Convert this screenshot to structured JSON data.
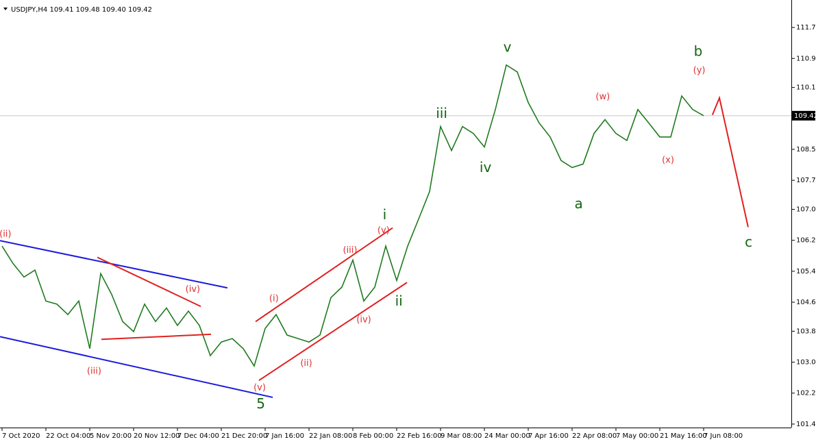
{
  "chart_data": {
    "type": "line",
    "title": "USDJPY,H4  109.41 109.48 109.40 109.42",
    "color": "#1e7a1e",
    "categories": [
      "7 Oct 2020",
      null,
      null,
      null,
      "22 Oct 04:00",
      null,
      null,
      null,
      "5 Nov 20:00",
      null,
      null,
      null,
      "20 Nov 12:00",
      null,
      null,
      null,
      "7 Dec 04:00",
      null,
      null,
      null,
      "21 Dec 20:00",
      null,
      null,
      null,
      "7 Jan 16:00",
      null,
      null,
      null,
      "22 Jan 08:00",
      null,
      null,
      null,
      "8 Feb 00:00",
      null,
      null,
      null,
      "22 Feb 16:00",
      null,
      null,
      null,
      "9 Mar 08:00",
      null,
      null,
      null,
      "24 Mar 00:00",
      null,
      null,
      null,
      "7 Apr 16:00",
      null,
      null,
      null,
      "22 Apr 08:00",
      null,
      null,
      null,
      "7 May 00:00",
      null,
      null,
      null,
      "21 May 16:00",
      null,
      null,
      null,
      "7 Jun 08:00"
    ],
    "values": [
      106.05,
      105.6,
      105.25,
      105.43,
      104.63,
      104.55,
      104.28,
      104.63,
      103.4,
      105.34,
      104.8,
      104.1,
      103.84,
      104.55,
      104.1,
      104.45,
      104.0,
      104.37,
      104.0,
      103.22,
      103.57,
      103.66,
      103.4,
      102.95,
      103.92,
      104.28,
      103.75,
      103.66,
      103.57,
      103.75,
      104.72,
      104.99,
      105.69,
      104.63,
      104.99,
      106.05,
      105.16,
      106.05,
      106.75,
      107.46,
      109.14,
      108.52,
      109.14,
      108.96,
      108.61,
      109.58,
      110.73,
      110.55,
      109.76,
      109.23,
      108.87,
      108.26,
      108.08,
      108.17,
      108.96,
      109.32,
      108.96,
      108.78,
      109.58,
      109.23,
      108.87,
      108.87,
      109.93,
      109.58,
      109.42
    ],
    "ylim": [
      101.36,
      112.41
    ],
    "yticks": [
      {
        "value": 111.7,
        "label": "111.70"
      },
      {
        "value": 110.9,
        "label": "110.90"
      },
      110.15,
      108.55,
      107.75,
      {
        "value": 107.0,
        "label": "107.00"
      },
      {
        "value": 106.2,
        "label": "106.20"
      },
      {
        "value": 105.4,
        "label": "105.40"
      },
      {
        "value": 104.6,
        "label": "104.60"
      },
      103.85,
      103.05,
      102.25,
      101.45
    ],
    "last_price": 109.42,
    "annotations": [
      {
        "text": "(ii)",
        "x": 0.3,
        "y": 106.35,
        "color": "#e03030"
      },
      {
        "text": "(iii)",
        "x": 8.4,
        "y": 102.81,
        "color": "#e03030"
      },
      {
        "text": "(iv)",
        "x": 17.4,
        "y": 104.93,
        "color": "#e03030"
      },
      {
        "text": "(v)",
        "x": 23.5,
        "y": 102.39,
        "color": "#e03030"
      },
      {
        "text": "5",
        "x": 23.6,
        "y": 101.95,
        "color": "#116611",
        "size": "big"
      },
      {
        "text": "(i)",
        "x": 24.8,
        "y": 104.69,
        "color": "#e03030"
      },
      {
        "text": "(ii)",
        "x": 27.75,
        "y": 103.02,
        "color": "#e03030"
      },
      {
        "text": "(iii)",
        "x": 31.75,
        "y": 105.94,
        "color": "#e03030"
      },
      {
        "text": "(iv)",
        "x": 33,
        "y": 104.14,
        "color": "#e03030"
      },
      {
        "text": "(v)",
        "x": 34.8,
        "y": 106.45,
        "color": "#e03030"
      },
      {
        "text": "i",
        "x": 34.9,
        "y": 106.84,
        "color": "#116611",
        "size": "big"
      },
      {
        "text": "ii",
        "x": 36.2,
        "y": 104.61,
        "color": "#116611",
        "size": "big"
      },
      {
        "text": "iii",
        "x": 40.1,
        "y": 109.46,
        "color": "#116611",
        "size": "big"
      },
      {
        "text": "iv",
        "x": 44.1,
        "y": 108.06,
        "color": "#116611",
        "size": "big"
      },
      {
        "text": "v",
        "x": 46.1,
        "y": 111.17,
        "color": "#116611",
        "size": "big"
      },
      {
        "text": "a",
        "x": 52.6,
        "y": 107.12,
        "color": "#116611",
        "size": "big"
      },
      {
        "text": "(w)",
        "x": 54.8,
        "y": 109.9,
        "color": "#e03030"
      },
      {
        "text": "(x)",
        "x": 60.75,
        "y": 108.27,
        "color": "#e03030"
      },
      {
        "text": "b",
        "x": 63.5,
        "y": 111.06,
        "color": "#116611",
        "size": "big"
      },
      {
        "text": "(y)",
        "x": 63.6,
        "y": 110.59,
        "color": "#e03030"
      },
      {
        "text": "c",
        "x": 68.1,
        "y": 106.13,
        "color": "#116611",
        "size": "big"
      }
    ],
    "lines": [
      {
        "color": "#1a1adc",
        "x": [
          -0.19,
          20.56
        ],
        "y": [
          106.19,
          104.97
        ]
      },
      {
        "color": "#1a1adc",
        "x": [
          -0.19,
          24.69
        ],
        "y": [
          103.71,
          102.14
        ]
      },
      {
        "color": "#e02020",
        "x": [
          8.69,
          18.13
        ],
        "y": [
          105.76,
          104.49
        ]
      },
      {
        "color": "#e02020",
        "x": [
          9.06,
          19.06
        ],
        "y": [
          103.64,
          103.77
        ]
      },
      {
        "color": "#e02020",
        "x": [
          23.44,
          36.94
        ],
        "y": [
          102.58,
          105.11
        ]
      },
      {
        "color": "#e02020",
        "x": [
          23.13,
          35.63
        ],
        "y": [
          104.1,
          106.52
        ]
      },
      {
        "color": "#e02020",
        "x": [
          64.8,
          65.44,
          68.06
        ],
        "y": [
          109.44,
          109.88,
          106.54
        ]
      }
    ]
  }
}
